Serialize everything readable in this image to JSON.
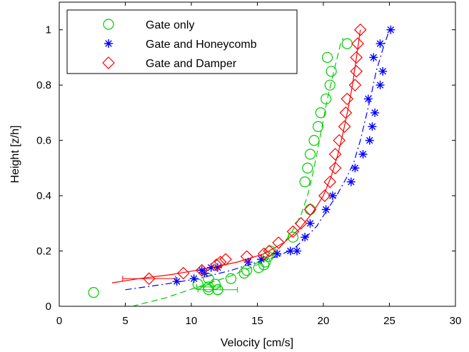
{
  "chart_data": {
    "type": "scatter",
    "xlabel": "Velocity [cm/s]",
    "ylabel": "Height [z/h]",
    "xlim": [
      0,
      30
    ],
    "ylim": [
      0,
      1.1
    ],
    "x_ticks": [
      "0",
      "5",
      "10",
      "15",
      "20",
      "25",
      "30"
    ],
    "y_ticks": [
      "0",
      "0.2",
      "0.4",
      "0.6",
      "0.8",
      "1"
    ],
    "x_tick_values": [
      0,
      5,
      10,
      15,
      20,
      25,
      30
    ],
    "y_tick_values": [
      0,
      0.2,
      0.4,
      0.6,
      0.8,
      1
    ],
    "grid": false,
    "legend_position": "top-left",
    "series": [
      {
        "name": "Gate only",
        "marker": "circle",
        "color": "#00cc00",
        "line_style": "dashed",
        "points": [
          [
            2.6,
            0.05
          ],
          [
            10.5,
            0.08
          ],
          [
            11.3,
            0.07
          ],
          [
            11.3,
            0.06
          ],
          [
            12.0,
            0.06
          ],
          [
            12.0,
            0.06
          ],
          [
            11.8,
            0.08
          ],
          [
            11.3,
            0.1
          ],
          [
            13.0,
            0.1
          ],
          [
            14.0,
            0.12
          ],
          [
            14.2,
            0.13
          ],
          [
            15.1,
            0.14
          ],
          [
            15.5,
            0.15
          ],
          [
            15.6,
            0.16
          ],
          [
            15.8,
            0.18
          ],
          [
            16.0,
            0.2
          ],
          [
            17.7,
            0.25
          ],
          [
            19.0,
            0.35
          ],
          [
            18.6,
            0.45
          ],
          [
            18.8,
            0.5
          ],
          [
            19.0,
            0.55
          ],
          [
            19.3,
            0.6
          ],
          [
            19.6,
            0.65
          ],
          [
            19.8,
            0.7
          ],
          [
            20.2,
            0.75
          ],
          [
            20.5,
            0.8
          ],
          [
            20.6,
            0.85
          ],
          [
            20.3,
            0.9
          ],
          [
            21.8,
            0.95
          ]
        ],
        "errorbars": [
          {
            "x": 12.0,
            "y": 0.06,
            "xerr": 1.5
          },
          {
            "x": 11.3,
            "y": 0.07,
            "xerr": 0.9
          }
        ],
        "fit": [
          [
            5.5,
            0
          ],
          [
            8.0,
            0.03
          ],
          [
            10.5,
            0.07
          ],
          [
            13.0,
            0.11
          ],
          [
            15.0,
            0.15
          ],
          [
            16.5,
            0.2
          ],
          [
            17.5,
            0.26
          ],
          [
            18.3,
            0.33
          ],
          [
            18.8,
            0.4
          ],
          [
            19.2,
            0.48
          ],
          [
            19.5,
            0.55
          ],
          [
            19.9,
            0.65
          ],
          [
            20.3,
            0.75
          ],
          [
            20.8,
            0.85
          ],
          [
            21.3,
            0.95
          ],
          [
            21.5,
            0.97
          ]
        ]
      },
      {
        "name": "Gate and Honeycomb",
        "marker": "asterisk",
        "color": "#0000ff",
        "line_style": "dash-dot",
        "points": [
          [
            8.9,
            0.09
          ],
          [
            10.2,
            0.1
          ],
          [
            10.8,
            0.13
          ],
          [
            11.0,
            0.12
          ],
          [
            11.5,
            0.14
          ],
          [
            12.0,
            0.14
          ],
          [
            14.3,
            0.16
          ],
          [
            15.3,
            0.17
          ],
          [
            16.5,
            0.19
          ],
          [
            17.5,
            0.2
          ],
          [
            18.0,
            0.2
          ],
          [
            18.6,
            0.25
          ],
          [
            19.0,
            0.3
          ],
          [
            20.2,
            0.35
          ],
          [
            20.7,
            0.4
          ],
          [
            22.1,
            0.45
          ],
          [
            22.4,
            0.5
          ],
          [
            23.0,
            0.55
          ],
          [
            23.5,
            0.6
          ],
          [
            23.7,
            0.65
          ],
          [
            23.9,
            0.7
          ],
          [
            23.4,
            0.75
          ],
          [
            24.3,
            0.8
          ],
          [
            24.5,
            0.85
          ],
          [
            23.8,
            0.9
          ],
          [
            24.3,
            0.95
          ],
          [
            25.1,
            1.0
          ]
        ],
        "errorbars": [],
        "fit": [
          [
            5.0,
            0.06
          ],
          [
            8.0,
            0.08
          ],
          [
            10.5,
            0.1
          ],
          [
            13.0,
            0.13
          ],
          [
            15.0,
            0.16
          ],
          [
            16.5,
            0.18
          ],
          [
            17.8,
            0.21
          ],
          [
            18.7,
            0.25
          ],
          [
            19.5,
            0.29
          ],
          [
            20.3,
            0.35
          ],
          [
            21.0,
            0.4
          ],
          [
            21.7,
            0.46
          ],
          [
            22.3,
            0.52
          ],
          [
            22.8,
            0.6
          ],
          [
            23.2,
            0.68
          ],
          [
            23.6,
            0.76
          ],
          [
            24.0,
            0.85
          ],
          [
            24.5,
            0.93
          ],
          [
            25.0,
            1.0
          ]
        ]
      },
      {
        "name": "Gate and Damper",
        "marker": "diamond",
        "color": "#ff0000",
        "line_style": "solid",
        "points": [
          [
            6.8,
            0.1
          ],
          [
            9.4,
            0.12
          ],
          [
            10.8,
            0.13
          ],
          [
            11.9,
            0.15
          ],
          [
            12.2,
            0.16
          ],
          [
            12.6,
            0.17
          ],
          [
            14.2,
            0.18
          ],
          [
            15.5,
            0.19
          ],
          [
            15.9,
            0.2
          ],
          [
            16.6,
            0.23
          ],
          [
            17.7,
            0.27
          ],
          [
            18.3,
            0.3
          ],
          [
            19.0,
            0.35
          ],
          [
            20.1,
            0.4
          ],
          [
            20.5,
            0.45
          ],
          [
            20.9,
            0.5
          ],
          [
            20.9,
            0.55
          ],
          [
            21.2,
            0.6
          ],
          [
            21.6,
            0.65
          ],
          [
            21.7,
            0.7
          ],
          [
            21.8,
            0.75
          ],
          [
            22.4,
            0.8
          ],
          [
            22.5,
            0.85
          ],
          [
            22.5,
            0.9
          ],
          [
            22.6,
            0.95
          ],
          [
            22.8,
            1.0
          ]
        ],
        "errorbars": [
          {
            "x": 6.8,
            "y": 0.1,
            "xerr": 2.0
          }
        ],
        "fit": [
          [
            4.0,
            0.085
          ],
          [
            6.0,
            0.1
          ],
          [
            8.5,
            0.115
          ],
          [
            11.0,
            0.135
          ],
          [
            13.5,
            0.16
          ],
          [
            15.5,
            0.19
          ],
          [
            17.0,
            0.23
          ],
          [
            18.2,
            0.28
          ],
          [
            19.2,
            0.34
          ],
          [
            20.0,
            0.4
          ],
          [
            20.6,
            0.47
          ],
          [
            21.1,
            0.55
          ],
          [
            21.5,
            0.63
          ],
          [
            21.9,
            0.72
          ],
          [
            22.2,
            0.8
          ],
          [
            22.5,
            0.9
          ],
          [
            22.8,
            1.0
          ]
        ]
      }
    ]
  }
}
